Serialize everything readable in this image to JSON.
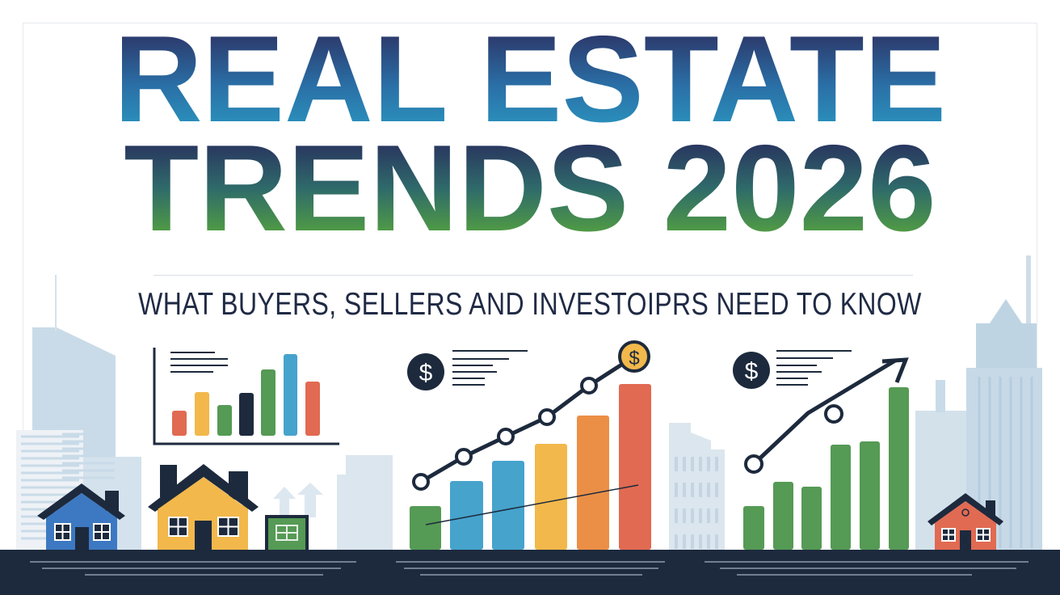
{
  "title": {
    "line1": "REAL ESTATE",
    "line2": "TRENDS 2026"
  },
  "subtitle": "WHAT BUYERS, SELLERS AND INVESTOIPRS NEED TO KNOW",
  "icons": [
    "dollar-coin-icon",
    "house-icon",
    "bar-chart-icon",
    "trend-arrow-icon",
    "building-icon"
  ],
  "colors": {
    "navy": "#1d2a3d",
    "blue": "#3d79c2",
    "sky": "#46a3cc",
    "yellow": "#f2b84b",
    "orange": "#eb8f47",
    "red": "#e16a52",
    "green": "#559a55",
    "building": "#c9dbe8"
  }
}
